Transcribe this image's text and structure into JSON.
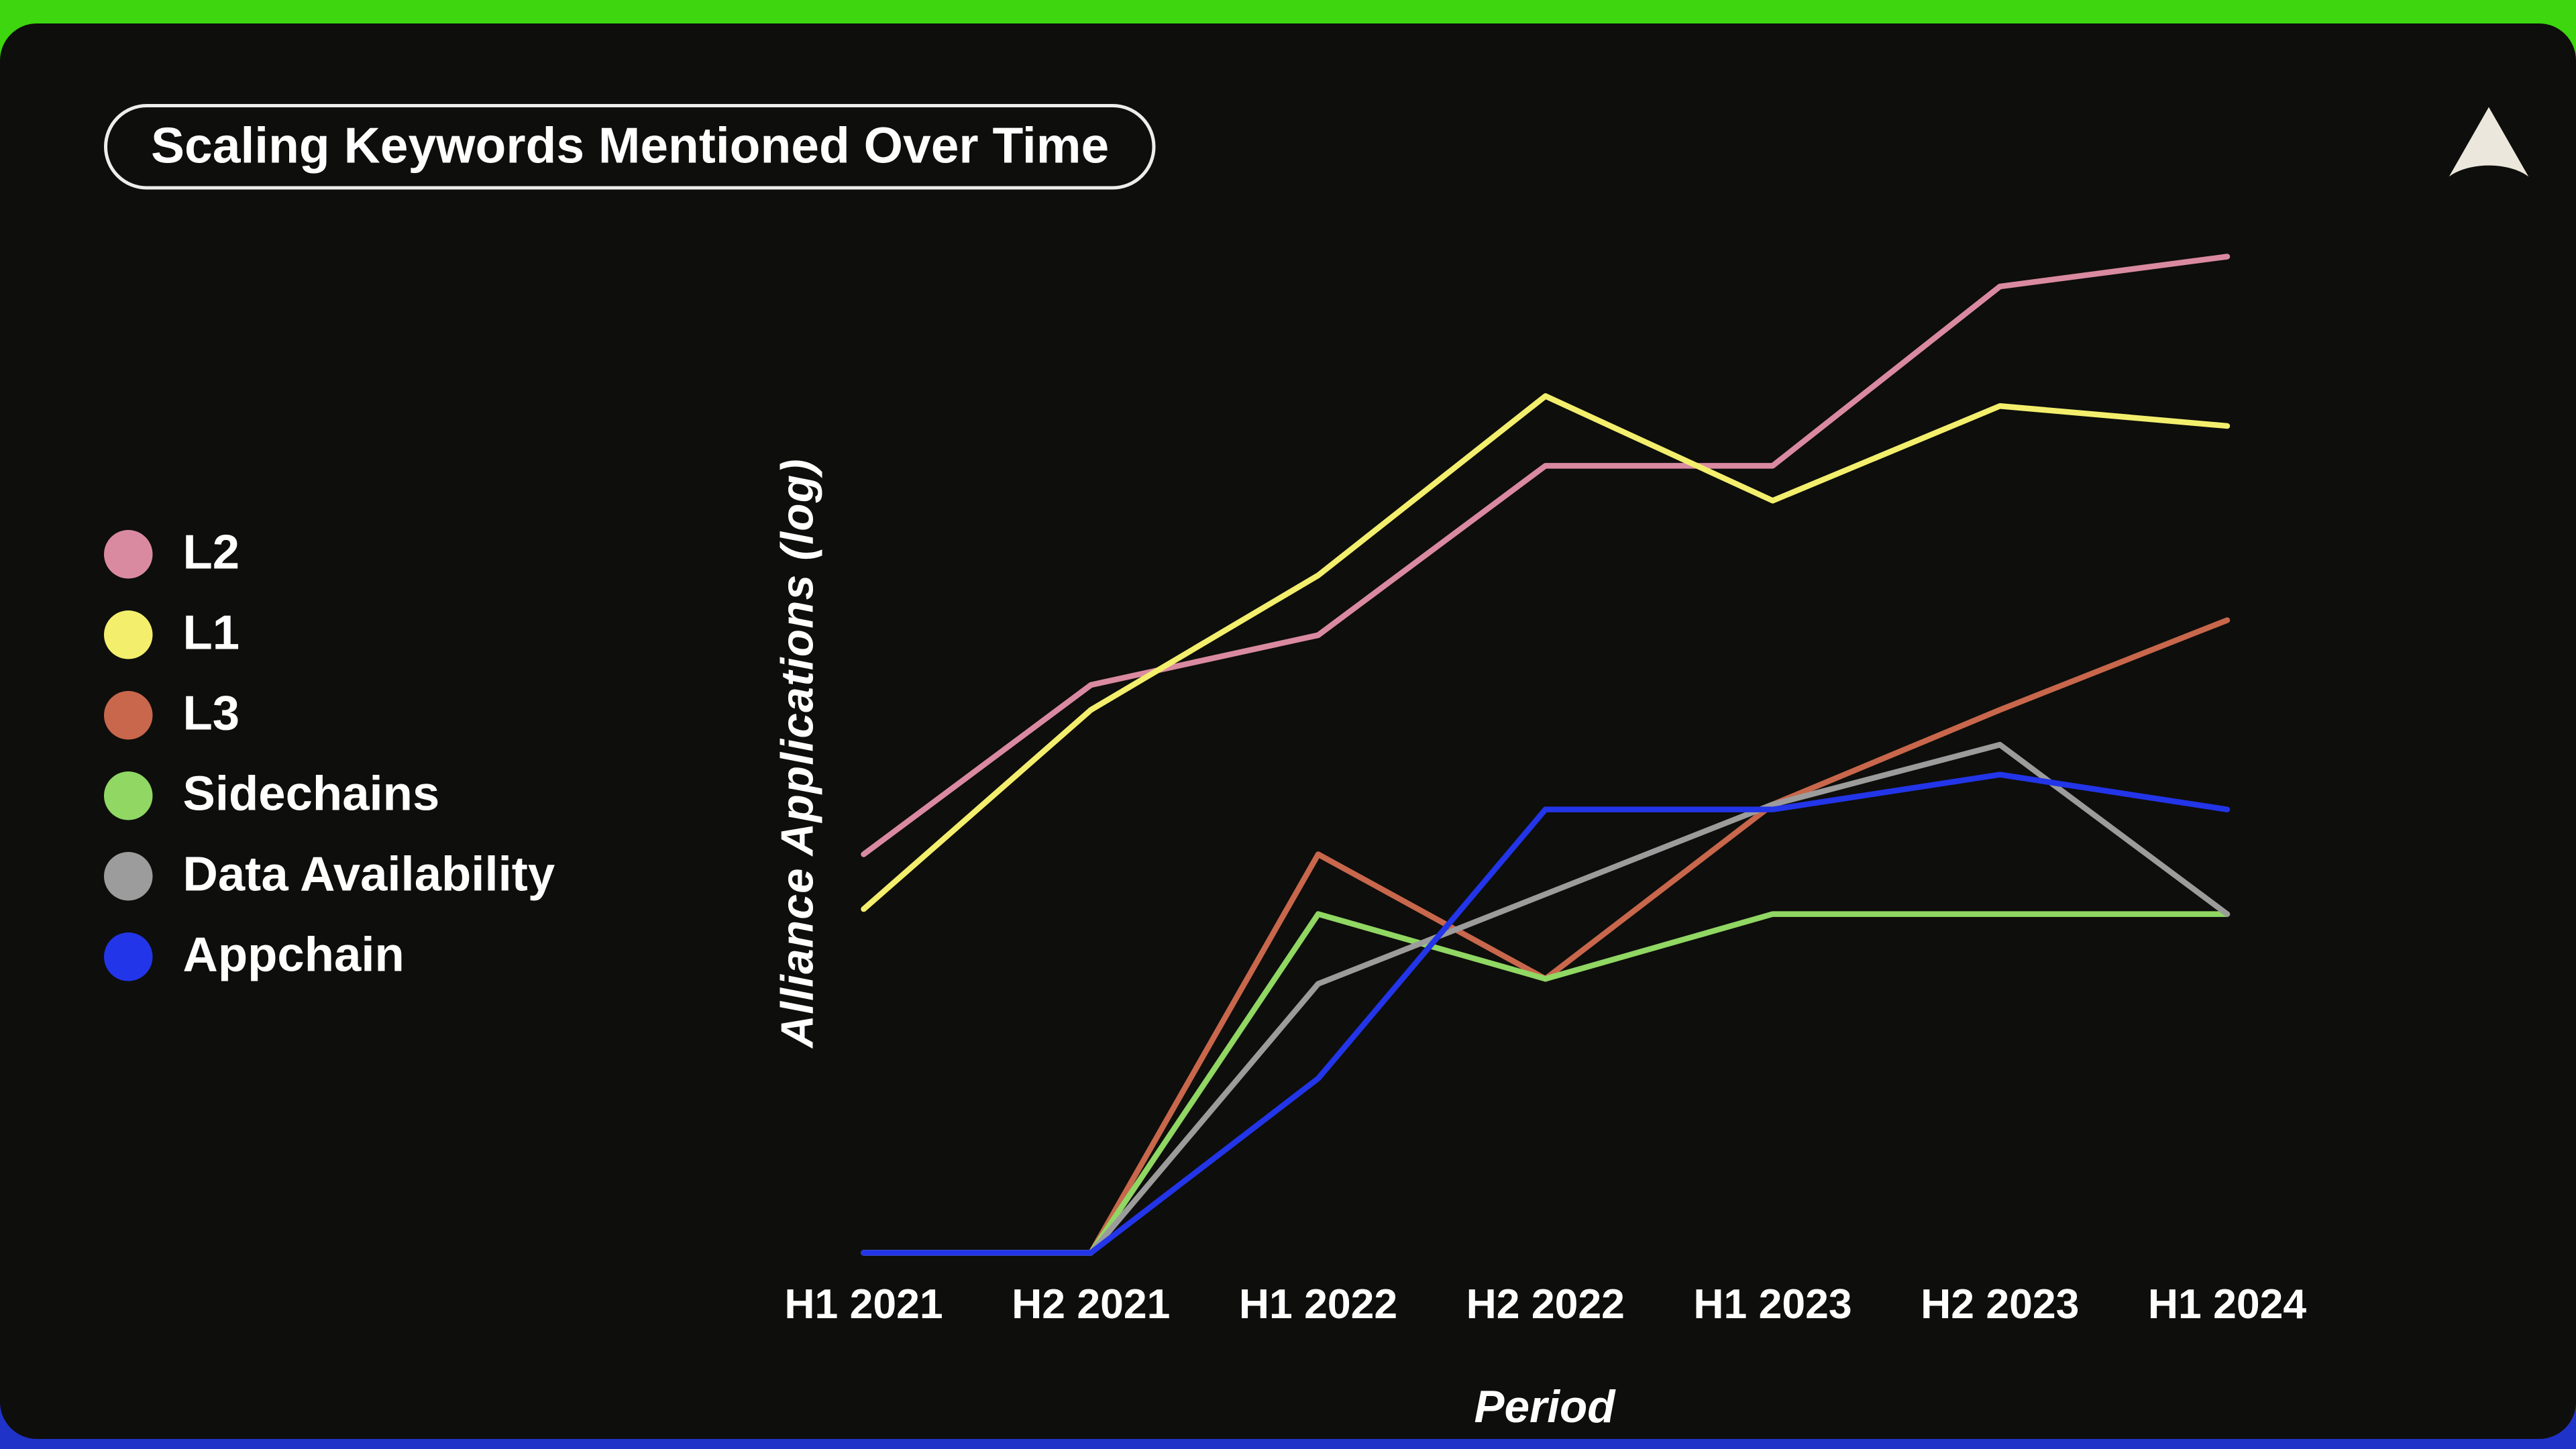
{
  "header": {
    "title": "Scaling Keywords Mentioned Over Time"
  },
  "icons": {
    "logo": "triangle-arrowhead-logo"
  },
  "colors": {
    "top_bar": "#3dd60f",
    "bottom_bar": "#2033c9",
    "panel_background": "#0e0e0c",
    "text": "#ffffff",
    "logo": "#ece7dc"
  },
  "chart_data": {
    "type": "line",
    "title": "Scaling Keywords Mentioned Over Time",
    "xlabel": "Period",
    "ylabel": "Alliance Applications (log)",
    "categories": [
      "H1 2021",
      "H2 2021",
      "H1 2022",
      "H2 2022",
      "H1 2023",
      "H2 2023",
      "H1 2024"
    ],
    "y_axis_note": "log scale, no tick labels shown; values are relative heights 0-100 estimated from pixels",
    "ylim": [
      0,
      100
    ],
    "grid": false,
    "legend_position": "left",
    "series": [
      {
        "name": "L2",
        "color": "#da8aa0",
        "values": [
          40,
          57,
          62,
          79,
          79,
          97,
          100
        ]
      },
      {
        "name": "L1",
        "color": "#f3ef6d",
        "values": [
          34.5,
          54.5,
          68,
          86,
          75.5,
          85,
          83
        ]
      },
      {
        "name": "L3",
        "color": "#c8674b",
        "values": [
          0,
          0,
          40,
          27.5,
          45,
          54.5,
          63.5
        ]
      },
      {
        "name": "Sidechains",
        "color": "#90d763",
        "values": [
          0,
          0,
          34,
          27.5,
          34,
          34,
          34
        ]
      },
      {
        "name": "Data Availability",
        "color": "#9c9c9c",
        "values": [
          0,
          0,
          27,
          36,
          45,
          51,
          34
        ]
      },
      {
        "name": "Appchain",
        "color": "#2335e8",
        "values": [
          0,
          0,
          17.5,
          44.5,
          44.5,
          48,
          44.5
        ]
      }
    ]
  }
}
